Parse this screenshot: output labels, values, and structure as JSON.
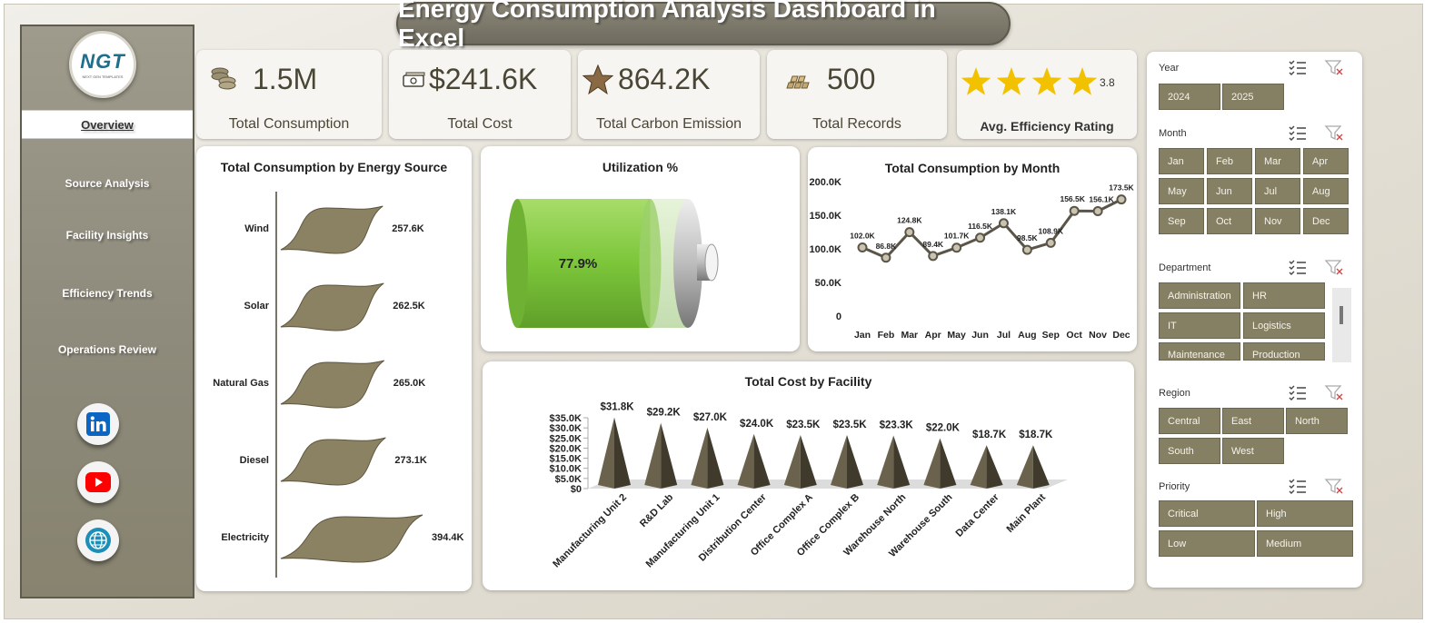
{
  "title": "Energy Consumption Analysis Dashboard in Excel",
  "logo": {
    "mark": "NGT",
    "sub": "NEXT GEN TEMPLATES"
  },
  "nav": [
    {
      "label": "Overview",
      "active": true
    },
    {
      "label": "Source Analysis"
    },
    {
      "label": "Facility Insights"
    },
    {
      "label": "Efficiency Trends"
    },
    {
      "label": "Operations Review"
    }
  ],
  "social": [
    {
      "icon": "linkedin-icon",
      "color": "#0a66c2"
    },
    {
      "icon": "youtube-icon",
      "color": "#ff0000"
    },
    {
      "icon": "globe-icon",
      "color": "#1b8fb8"
    }
  ],
  "kpis": [
    {
      "label": "Total Consumption",
      "value": "1.5M",
      "icon": "coins-icon"
    },
    {
      "label": "Total Cost",
      "value": "$241.6K",
      "icon": "money-icon"
    },
    {
      "label": "Total Carbon Emission",
      "value": "864.2K",
      "icon": "star-icon"
    },
    {
      "label": "Total Records",
      "value": "500",
      "icon": "gold-bars-icon"
    },
    {
      "label": "Avg. Efficiency Rating",
      "value": "3.8",
      "stars": 4,
      "icon": "rating-stars-icon"
    }
  ],
  "colors": {
    "accent": "#857f63",
    "dark": "#6f6a55",
    "line": "#5a5548",
    "battery": "#7fcb3a",
    "star": "#f2c200"
  },
  "chart_data": [
    {
      "type": "bar",
      "title": "Total Consumption by Energy Source",
      "categories": [
        "Wind",
        "Solar",
        "Natural Gas",
        "Diesel",
        "Electricity"
      ],
      "values": [
        257.6,
        262.5,
        265.0,
        273.1,
        394.4
      ],
      "data_labels": [
        "257.6K",
        "262.5K",
        "265.0K",
        "273.1K",
        "394.4K"
      ]
    },
    {
      "type": "gauge",
      "title": "Utilization %",
      "value": 77.9,
      "label": "77.9%"
    },
    {
      "type": "line",
      "title": "Total Consumption  by Month",
      "categories": [
        "Jan",
        "Feb",
        "Mar",
        "Apr",
        "May",
        "Jun",
        "Jul",
        "Aug",
        "Sep",
        "Oct",
        "Nov",
        "Dec"
      ],
      "values": [
        102.0,
        86.8,
        124.8,
        89.4,
        101.7,
        116.5,
        138.1,
        98.5,
        108.9,
        156.5,
        156.1,
        173.5
      ],
      "data_labels": [
        "102.0K",
        "86.8K",
        "124.8K",
        "89.4K",
        "101.7K",
        "116.5K",
        "138.1K",
        "98.5K",
        "108.9K",
        "156.5K",
        "156.1K",
        "173.5K"
      ],
      "yticks": [
        "0",
        "50.0K",
        "100.0K",
        "150.0K",
        "200.0K"
      ],
      "ylim": [
        0,
        200
      ]
    },
    {
      "type": "bar",
      "title": "Total Cost by Facility",
      "categories": [
        "Manufacturing Unit 2",
        "R&D Lab",
        "Manufacturing Unit 1",
        "Distribution Center",
        "Office Complex A",
        "Office Complex B",
        "Warehouse North",
        "Warehouse South",
        "Data Center",
        "Main Plant"
      ],
      "values": [
        31.8,
        29.2,
        27.0,
        24.0,
        23.5,
        23.5,
        23.3,
        22.0,
        18.7,
        18.7
      ],
      "data_labels": [
        "$31.8K",
        "$29.2K",
        "$27.0K",
        "$24.0K",
        "$23.5K",
        "$23.5K",
        "$23.3K",
        "$22.0K",
        "$18.7K",
        "$18.7K"
      ],
      "yticks": [
        "$0",
        "$5.0K",
        "$10.0K",
        "$15.0K",
        "$20.0K",
        "$25.0K",
        "$30.0K",
        "$35.0K"
      ],
      "ylim": [
        0,
        35
      ]
    }
  ],
  "slicers": [
    {
      "name": "Year",
      "items": [
        "2024",
        "2025"
      ]
    },
    {
      "name": "Month",
      "items": [
        "Jan",
        "Feb",
        "Mar",
        "Apr",
        "May",
        "Jun",
        "Jul",
        "Aug",
        "Sep",
        "Oct",
        "Nov",
        "Dec"
      ]
    },
    {
      "name": "Department",
      "items": [
        "Administration",
        "HR",
        "IT",
        "Logistics",
        "Maintenance",
        "Production"
      ]
    },
    {
      "name": "Region",
      "items": [
        "Central",
        "East",
        "North",
        "South",
        "West"
      ]
    },
    {
      "name": "Priority",
      "items": [
        "Critical",
        "High",
        "Low",
        "Medium"
      ]
    }
  ]
}
